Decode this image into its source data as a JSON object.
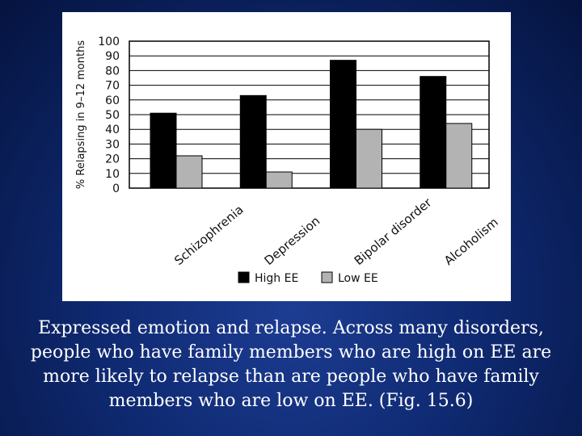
{
  "caption": "Expressed emotion and relapse. Across many disorders, people who have family members who are high on EE are more likely to relapse than are people who have family members who are low on EE. (Fig. 15.6)",
  "colors": {
    "background": "#0f2a72",
    "panel": "#ffffff",
    "high_ee": "#000000",
    "low_ee": "#b3b3b3",
    "text": "#ffffff"
  },
  "chart_data": {
    "type": "bar",
    "title": "",
    "xlabel": "",
    "ylabel": "% Relapsing in 9–12 months",
    "categories": [
      "Schizophrenia",
      "Depression",
      "Bipolar disorder",
      "Alcoholism"
    ],
    "series": [
      {
        "name": "High EE",
        "color": "#000000",
        "values": [
          51,
          63,
          87,
          76
        ]
      },
      {
        "name": "Low EE",
        "color": "#b3b3b3",
        "values": [
          22,
          11,
          40,
          44
        ]
      }
    ],
    "ylim": [
      0,
      100
    ],
    "yticks": [
      0,
      10,
      20,
      30,
      40,
      50,
      60,
      70,
      80,
      90,
      100
    ],
    "grid": true,
    "legend_position": "bottom"
  }
}
